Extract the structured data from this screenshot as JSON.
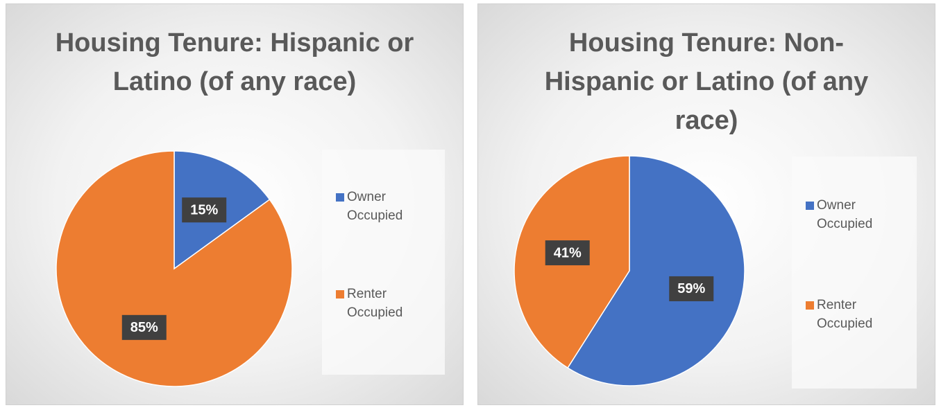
{
  "chart_data": [
    {
      "type": "pie",
      "title": "Housing Tenure: Hispanic or Latino (of any race)",
      "series": [
        {
          "name": "Owner Occupied",
          "color": "#4472c4",
          "values": [
            15
          ],
          "value_labels": [
            "15%"
          ]
        },
        {
          "name": "Renter Occupied",
          "color": "#ed7d31",
          "values": [
            85
          ],
          "value_labels": [
            "85%"
          ]
        }
      ]
    },
    {
      "type": "pie",
      "title": "Housing Tenure: Non-Hispanic or Latino (of any race)",
      "series": [
        {
          "name": "Owner Occupied",
          "color": "#4472c4",
          "values": [
            59
          ],
          "value_labels": [
            "59%"
          ]
        },
        {
          "name": "Renter Occupied",
          "color": "#ed7d31",
          "values": [
            41
          ],
          "value_labels": [
            "41%"
          ]
        }
      ]
    }
  ]
}
